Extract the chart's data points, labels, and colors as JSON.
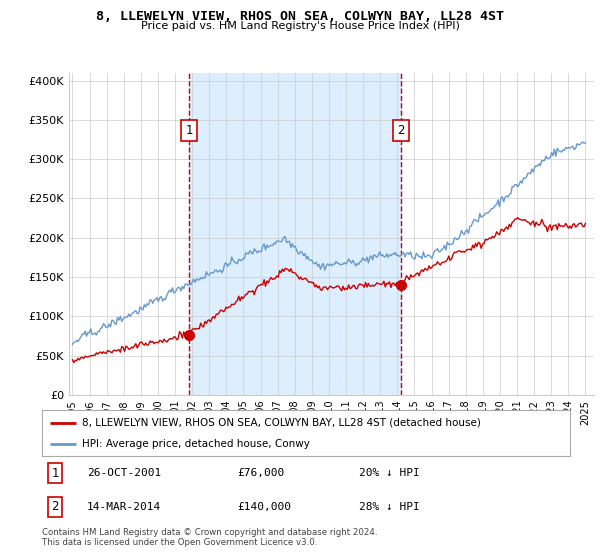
{
  "title": "8, LLEWELYN VIEW, RHOS ON SEA, COLWYN BAY, LL28 4ST",
  "subtitle": "Price paid vs. HM Land Registry's House Price Index (HPI)",
  "ylabel_ticks": [
    "£0",
    "£50K",
    "£100K",
    "£150K",
    "£200K",
    "£250K",
    "£300K",
    "£350K",
    "£400K"
  ],
  "ytick_values": [
    0,
    50000,
    100000,
    150000,
    200000,
    250000,
    300000,
    350000,
    400000
  ],
  "ylim": [
    0,
    410000
  ],
  "xlim_start": 1994.8,
  "xlim_end": 2025.5,
  "sale1_x": 2001.82,
  "sale1_y": 76000,
  "sale1_label": "1",
  "sale1_date": "26-OCT-2001",
  "sale1_price": "£76,000",
  "sale1_hpi": "20% ↓ HPI",
  "sale2_x": 2014.2,
  "sale2_y": 140000,
  "sale2_label": "2",
  "sale2_date": "14-MAR-2014",
  "sale2_price": "£140,000",
  "sale2_hpi": "28% ↓ HPI",
  "vline_color": "#cc0000",
  "shade_color": "#ddeeff",
  "hpi_color": "#6699cc",
  "sale_color": "#cc0000",
  "background_color": "#ffffff",
  "grid_color": "#cccccc",
  "legend_label_red": "8, LLEWELYN VIEW, RHOS ON SEA, COLWYN BAY, LL28 4ST (detached house)",
  "legend_label_blue": "HPI: Average price, detached house, Conwy",
  "footer": "Contains HM Land Registry data © Crown copyright and database right 2024.\nThis data is licensed under the Open Government Licence v3.0."
}
